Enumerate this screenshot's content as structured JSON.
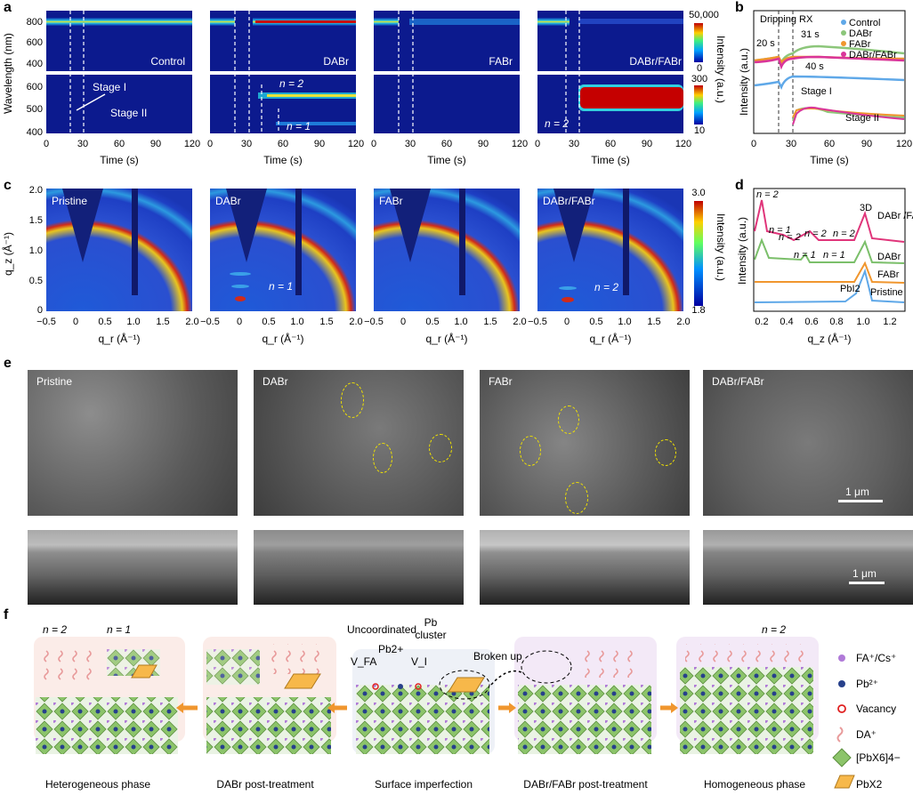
{
  "panels": {
    "a": "a",
    "b": "b",
    "c": "c",
    "d": "d",
    "e": "e",
    "f": "f"
  },
  "a": {
    "ylabel": "Wavelength (nm)",
    "xlabel": "Time (s)",
    "xticks": [
      "0",
      "30",
      "60",
      "90",
      "120"
    ],
    "yticks_top": [
      "800",
      "600",
      "400"
    ],
    "yticks_bottom": [
      "600",
      "500",
      "400"
    ],
    "panel_labels": [
      "Control",
      "DABr",
      "FABr",
      "DABr/FABr"
    ],
    "stage1": "Stage I",
    "stage2": "Stage II",
    "n2": "n = 2",
    "n1": "n = 1",
    "cbar_label": "Intensity (a.u.)",
    "cbar_top": [
      "50,000",
      "0"
    ],
    "cbar_bottom": [
      "300",
      "10"
    ]
  },
  "b": {
    "ylabel": "Intensity (a.u.)",
    "xlabel": "Time (s)",
    "xticks": [
      "0",
      "30",
      "60",
      "90",
      "120"
    ],
    "legend": [
      {
        "name": "Control",
        "color": "#5fa8e8"
      },
      {
        "name": "DABr",
        "color": "#8cc67a"
      },
      {
        "name": "FABr",
        "color": "#f0962e"
      },
      {
        "name": "DABr/FABr",
        "color": "#d9359a"
      }
    ],
    "ann": [
      "Dripping RX",
      "20 s",
      "31 s",
      "40 s",
      "Stage I",
      "Stage II"
    ]
  },
  "c": {
    "ylabel": "q_z (Å⁻¹)",
    "xlabel": "q_r (Å⁻¹)",
    "xticks": [
      "−0.5",
      "0",
      "0.5",
      "1.0",
      "1.5",
      "2.0"
    ],
    "yticks": [
      "2.0",
      "1.5",
      "1.0",
      "0.5",
      "0"
    ],
    "panel_labels": [
      "Pristine",
      "DABr",
      "FABr",
      "DABr/FABr"
    ],
    "n1": "n = 1",
    "n2": "n = 2",
    "cbar_label": "Intensity (a.u.)",
    "cbar": [
      "3.0",
      "1.8"
    ]
  },
  "d": {
    "ylabel": "Intensity (a.u.)",
    "xlabel": "q_z (Å⁻¹)",
    "xticks": [
      "0.2",
      "0.4",
      "0.6",
      "0.8",
      "1.0",
      "1.2"
    ],
    "series": [
      {
        "name": "DABr\n/FABr",
        "color": "#e0357a"
      },
      {
        "name": "DABr",
        "color": "#7bbf6a"
      },
      {
        "name": "FABr",
        "color": "#f0962e"
      },
      {
        "name": "Pristine",
        "color": "#5fa8e8"
      }
    ],
    "ann": [
      "n = 2",
      "n = 1",
      "n = 2",
      "n = 2",
      "n = 2",
      "n = 1",
      "n = 1",
      "3D",
      "PbI2"
    ]
  },
  "e": {
    "labels": [
      "Pristine",
      "DABr",
      "FABr",
      "DABr/FABr"
    ],
    "scale": "1 μm"
  },
  "f": {
    "top": [
      "n = 2",
      "n = 1",
      "Uncoordinated",
      "Pb",
      "cluster",
      "Broken up",
      "n = 2"
    ],
    "defects": [
      "V_FA",
      "Pb2+",
      "V_I"
    ],
    "captions": [
      "Heterogeneous phase",
      "DABr post-treatment",
      "Surface imperfection",
      "DABr/FABr post-treatment",
      "Homogeneous phase"
    ],
    "legend": [
      "FA⁺/Cs⁺",
      "Pb²⁺",
      "Vacancy",
      "DA⁺",
      "[PbX6]4−",
      "PbX2"
    ]
  }
}
